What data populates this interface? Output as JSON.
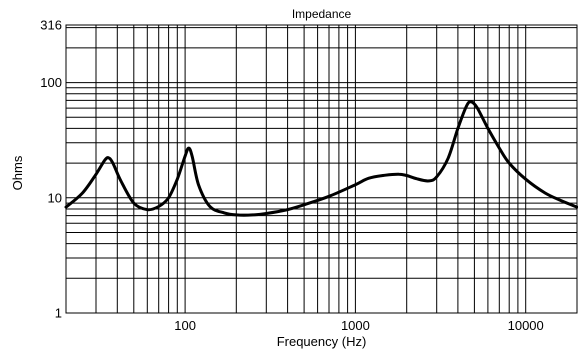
{
  "chart_data": {
    "type": "line",
    "title": "Impedance",
    "xlabel": "Frequency (Hz)",
    "ylabel": "Ohms",
    "x_scale": "log",
    "y_scale": "log",
    "xlim": [
      20,
      20000
    ],
    "ylim": [
      1,
      316
    ],
    "grid": true,
    "x_ticks": [
      {
        "value": 100,
        "label": "100"
      },
      {
        "value": 1000,
        "label": "1000"
      },
      {
        "value": 10000,
        "label": "10000"
      }
    ],
    "y_ticks": [
      {
        "value": 1,
        "label": "1"
      },
      {
        "value": 10,
        "label": "10"
      },
      {
        "value": 100,
        "label": "100"
      },
      {
        "value": 316,
        "label": "316"
      }
    ],
    "series": [
      {
        "color": "#000000",
        "x": [
          20,
          25,
          30,
          34,
          36,
          38,
          42,
          50,
          60,
          70,
          80,
          90,
          100,
          105,
          110,
          120,
          140,
          170,
          200,
          250,
          300,
          400,
          500,
          700,
          1000,
          1200,
          1500,
          1800,
          2000,
          2300,
          2700,
          3000,
          3500,
          4000,
          4500,
          4800,
          5200,
          6000,
          7000,
          8000,
          10000,
          13000,
          16000,
          20000
        ],
        "y": [
          8.3,
          11.0,
          16.0,
          21.5,
          22.0,
          19.5,
          14.0,
          9.0,
          7.9,
          8.4,
          10.0,
          14.5,
          23.0,
          27.0,
          23.0,
          13.0,
          8.4,
          7.4,
          7.1,
          7.1,
          7.3,
          7.9,
          8.7,
          10.3,
          13.0,
          14.8,
          15.7,
          16.0,
          15.6,
          14.6,
          14.0,
          15.2,
          22.0,
          40.0,
          63.0,
          68.0,
          60.0,
          40.0,
          27.0,
          20.0,
          14.5,
          11.0,
          9.5,
          8.3
        ]
      }
    ]
  }
}
